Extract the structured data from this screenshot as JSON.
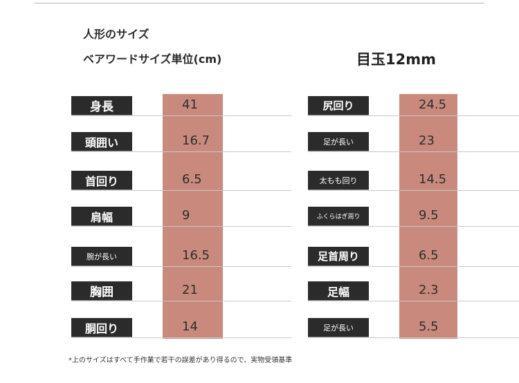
{
  "header": {
    "title": "人形のサイズ",
    "unit_title": "ベアワードサイズ単位(cm)",
    "eye_size": "目玉12mm"
  },
  "left_table": [
    {
      "label": "身長",
      "value": "41"
    },
    {
      "label": "頭囲い",
      "value": "16.7"
    },
    {
      "label": "首回り",
      "value": "6.5"
    },
    {
      "label": "肩幅",
      "value": "9"
    },
    {
      "label": "腕が長い",
      "value": "16.5"
    },
    {
      "label": "胸囲",
      "value": "21"
    },
    {
      "label": "胴回り",
      "value": "14"
    }
  ],
  "right_table": [
    {
      "label": "尻回り",
      "value": "24.5"
    },
    {
      "label": "足が長い",
      "value": "23"
    },
    {
      "label": "太もも回り",
      "value": "14.5"
    },
    {
      "label": "ふくらはぎ周り",
      "value": "9.5"
    },
    {
      "label": "足首周り",
      "value": "6.5"
    },
    {
      "label": "足幅",
      "value": "2.3"
    },
    {
      "label": "足が長い",
      "value": "5.5"
    }
  ],
  "footnote": "*上のサイズはすべて手作業で若干の誤差があり得るので、実物受領基準",
  "colors": {
    "label_bg": "#2b2b2b",
    "value_bar": "#c98a7d"
  }
}
